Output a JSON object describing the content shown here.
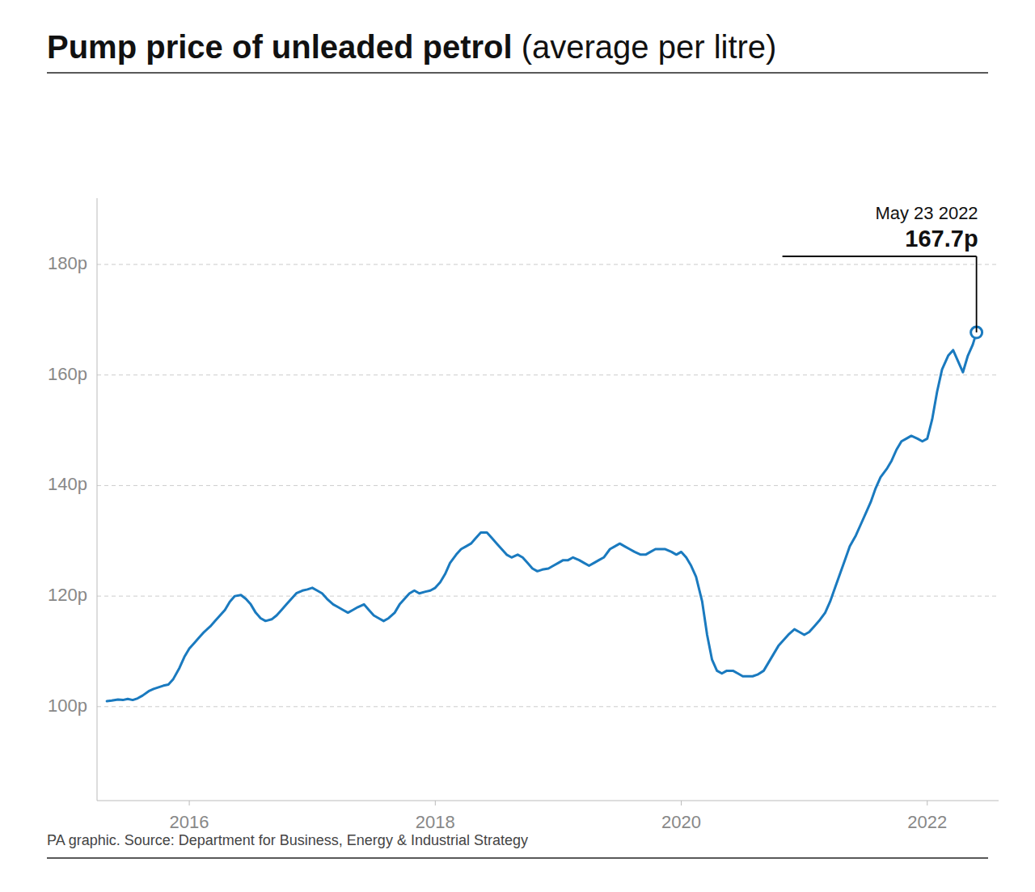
{
  "chart_data": {
    "type": "line",
    "title": "Pump price of unleaded petrol",
    "subtitle": " (average per litre)",
    "annotations": [
      "May 23 2022",
      "167.7p",
      "PA graphic. Source: Department for Business, Energy & Industrial Strategy"
    ],
    "color": "#1a7abf",
    "grid": true,
    "xlim": [
      2015.25,
      2022.58
    ],
    "xticks": [
      2016,
      2018,
      2020,
      2022
    ],
    "ylim": [
      83,
      192
    ],
    "yticks": [
      {
        "value": 100,
        "label": "100p"
      },
      {
        "value": 120,
        "label": "120p"
      },
      {
        "value": 140,
        "label": "140p"
      },
      {
        "value": 160,
        "label": "160p"
      },
      {
        "value": 180,
        "label": "180p"
      }
    ],
    "x": [
      2015.33,
      2015.37,
      2015.42,
      2015.46,
      2015.5,
      2015.54,
      2015.58,
      2015.62,
      2015.67,
      2015.71,
      2015.75,
      2015.79,
      2015.83,
      2015.87,
      2015.92,
      2015.96,
      2016.0,
      2016.04,
      2016.08,
      2016.12,
      2016.17,
      2016.21,
      2016.25,
      2016.29,
      2016.33,
      2016.37,
      2016.42,
      2016.46,
      2016.5,
      2016.54,
      2016.58,
      2016.62,
      2016.67,
      2016.71,
      2016.75,
      2016.79,
      2016.83,
      2016.87,
      2016.92,
      2016.96,
      2017.0,
      2017.04,
      2017.08,
      2017.12,
      2017.17,
      2017.21,
      2017.25,
      2017.29,
      2017.33,
      2017.37,
      2017.42,
      2017.46,
      2017.5,
      2017.54,
      2017.58,
      2017.62,
      2017.67,
      2017.71,
      2017.75,
      2017.79,
      2017.83,
      2017.87,
      2017.92,
      2017.96,
      2018.0,
      2018.04,
      2018.08,
      2018.12,
      2018.17,
      2018.21,
      2018.25,
      2018.29,
      2018.33,
      2018.37,
      2018.42,
      2018.46,
      2018.5,
      2018.54,
      2018.58,
      2018.62,
      2018.67,
      2018.71,
      2018.75,
      2018.79,
      2018.83,
      2018.87,
      2018.92,
      2018.96,
      2019.0,
      2019.04,
      2019.08,
      2019.12,
      2019.17,
      2019.21,
      2019.25,
      2019.29,
      2019.33,
      2019.37,
      2019.42,
      2019.46,
      2019.5,
      2019.54,
      2019.58,
      2019.62,
      2019.67,
      2019.71,
      2019.75,
      2019.79,
      2019.83,
      2019.87,
      2019.92,
      2019.96,
      2020.0,
      2020.04,
      2020.08,
      2020.12,
      2020.17,
      2020.21,
      2020.25,
      2020.29,
      2020.33,
      2020.37,
      2020.42,
      2020.46,
      2020.5,
      2020.54,
      2020.58,
      2020.62,
      2020.67,
      2020.71,
      2020.75,
      2020.79,
      2020.83,
      2020.87,
      2020.92,
      2020.96,
      2021.0,
      2021.04,
      2021.08,
      2021.12,
      2021.17,
      2021.21,
      2021.25,
      2021.29,
      2021.33,
      2021.37,
      2021.42,
      2021.46,
      2021.5,
      2021.54,
      2021.58,
      2021.62,
      2021.67,
      2021.71,
      2021.75,
      2021.79,
      2021.83,
      2021.87,
      2021.92,
      2021.96,
      2022.0,
      2022.04,
      2022.08,
      2022.12,
      2022.17,
      2022.21,
      2022.25,
      2022.29,
      2022.33,
      2022.37,
      2022.4
    ],
    "values": [
      101.0,
      101.1,
      101.3,
      101.2,
      101.4,
      101.2,
      101.5,
      102.0,
      102.8,
      103.2,
      103.5,
      103.8,
      104.0,
      105.0,
      107.0,
      109.0,
      110.5,
      111.5,
      112.5,
      113.5,
      114.5,
      115.5,
      116.5,
      117.5,
      119.0,
      120.0,
      120.2,
      119.5,
      118.5,
      117.0,
      116.0,
      115.5,
      115.8,
      116.5,
      117.5,
      118.5,
      119.5,
      120.5,
      121.0,
      121.2,
      121.5,
      121.0,
      120.5,
      119.5,
      118.5,
      118.0,
      117.5,
      117.0,
      117.5,
      118.0,
      118.5,
      117.5,
      116.5,
      116.0,
      115.5,
      116.0,
      117.0,
      118.5,
      119.5,
      120.5,
      121.0,
      120.5,
      120.8,
      121.0,
      121.5,
      122.5,
      124.0,
      126.0,
      127.5,
      128.5,
      129.0,
      129.5,
      130.5,
      131.5,
      131.5,
      130.5,
      129.5,
      128.5,
      127.5,
      127.0,
      127.5,
      127.0,
      126.0,
      125.0,
      124.5,
      124.8,
      125.0,
      125.5,
      126.0,
      126.5,
      126.5,
      127.0,
      126.5,
      126.0,
      125.5,
      126.0,
      126.5,
      127.0,
      128.5,
      129.0,
      129.5,
      129.0,
      128.5,
      128.0,
      127.5,
      127.5,
      128.0,
      128.5,
      128.5,
      128.5,
      128.0,
      127.5,
      128.0,
      127.0,
      125.5,
      123.5,
      119.0,
      113.0,
      108.5,
      106.5,
      106.0,
      106.5,
      106.5,
      106.0,
      105.5,
      105.5,
      105.5,
      105.8,
      106.5,
      108.0,
      109.5,
      111.0,
      112.0,
      113.0,
      114.0,
      113.5,
      113.0,
      113.5,
      114.5,
      115.5,
      117.0,
      119.0,
      121.5,
      124.0,
      126.5,
      129.0,
      131.0,
      133.0,
      135.0,
      137.0,
      139.5,
      141.5,
      143.0,
      144.5,
      146.5,
      148.0,
      148.5,
      149.0,
      148.5,
      148.0,
      148.5,
      152.0,
      157.0,
      161.0,
      163.5,
      164.5,
      162.5,
      160.5,
      163.5,
      165.5,
      167.7
    ]
  }
}
